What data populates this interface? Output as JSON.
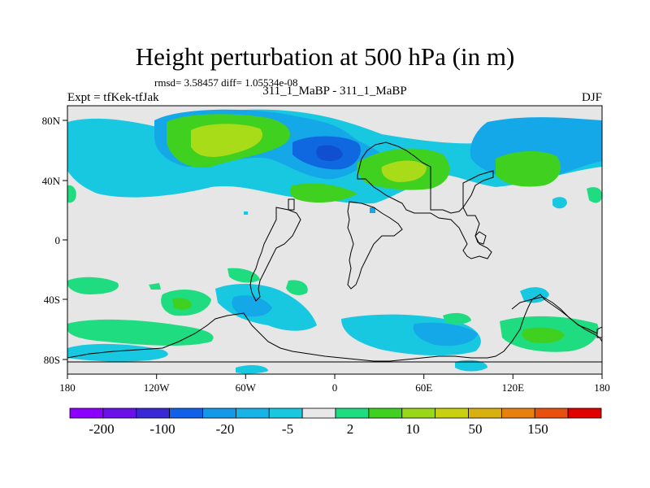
{
  "figure": {
    "title": "Height perturbation at 500 hPa (in m)",
    "stats": "rmsd= 3.58457 diff= 1.05534e-08",
    "left_label": "Expt = tfKek-tfJak",
    "center_label": "311_1_MaBP - 311_1_MaBP",
    "right_label": "DJF"
  },
  "axes": {
    "x_ticks": [
      "180",
      "120W",
      "60W",
      "0",
      "60E",
      "120E",
      "180"
    ],
    "y_ticks": [
      "80N",
      "40N",
      "0",
      "40S",
      "80S"
    ]
  },
  "colorbar": {
    "colors": [
      "#8c00ff",
      "#6b10e8",
      "#3a28d6",
      "#1060e8",
      "#1498e8",
      "#18b4e8",
      "#18c8e0",
      "#e8e8e8",
      "#20dc80",
      "#40d020",
      "#98d818",
      "#c8d010",
      "#d8b010",
      "#e88010",
      "#e85010",
      "#e00000"
    ],
    "labels": [
      "-200",
      "-100",
      "-20",
      "-5",
      "2",
      "10",
      "50",
      "150"
    ]
  },
  "map": {
    "background": "#e6e6e6",
    "fill_colors": {
      "lightblue": "#18c8e0",
      "midblue": "#14a8e8",
      "blue": "#1068e0",
      "green": "#20dc80",
      "lime": "#40d020",
      "yellowgreen": "#a8dc18"
    }
  }
}
